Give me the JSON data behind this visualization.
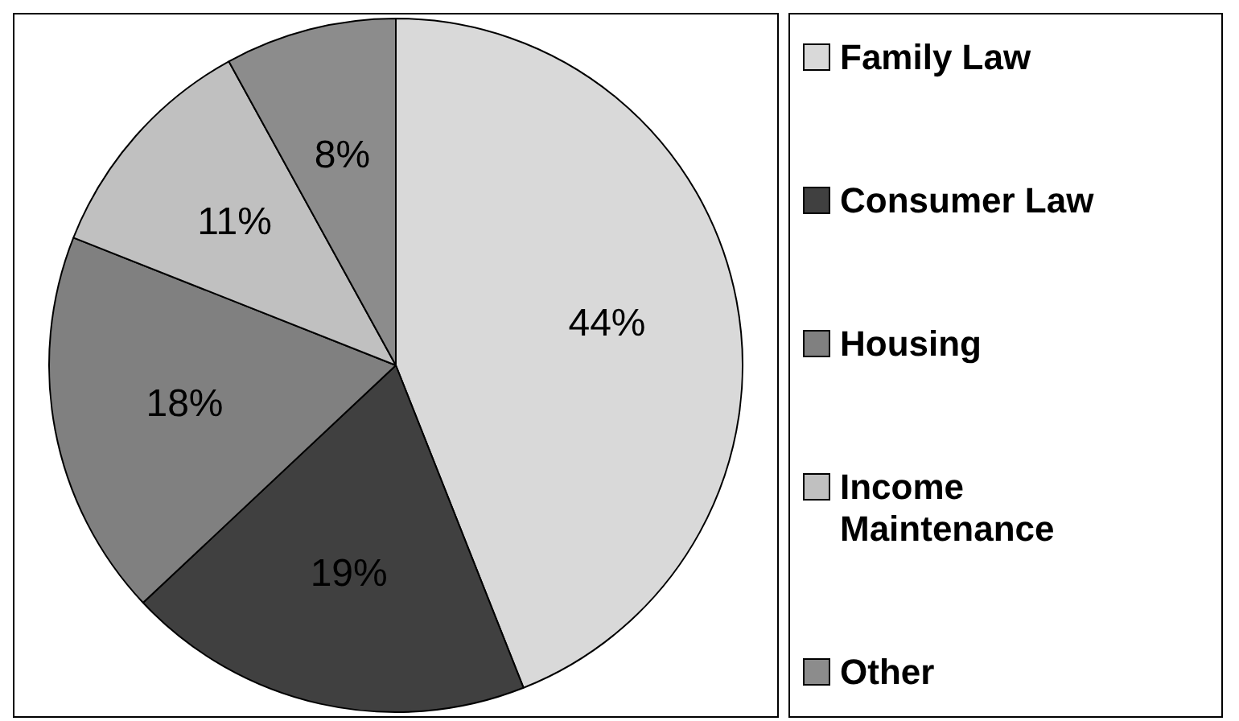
{
  "chart_data": {
    "type": "pie",
    "categories": [
      "Family Law",
      "Consumer Law",
      "Housing",
      "Income Maintenance",
      "Other"
    ],
    "values": [
      44,
      19,
      18,
      11,
      8
    ],
    "value_labels": [
      "44%",
      "19%",
      "18%",
      "11%",
      "8%"
    ],
    "colors": [
      "#d9d9d9",
      "#404040",
      "#808080",
      "#c0c0c0",
      "#8c8c8c"
    ],
    "legend": "right"
  }
}
